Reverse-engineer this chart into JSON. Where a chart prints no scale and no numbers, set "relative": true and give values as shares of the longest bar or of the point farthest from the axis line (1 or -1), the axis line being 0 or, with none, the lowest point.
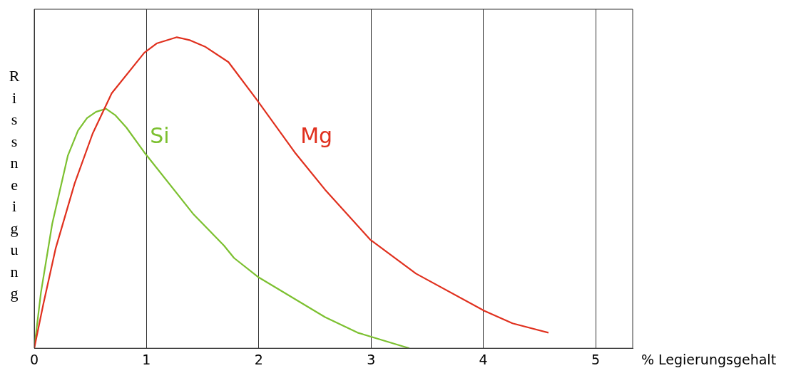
{
  "chart_data": {
    "type": "line",
    "relative": true,
    "xlabel": "% Legierungsgehalt",
    "ylabel": "Rissneigung",
    "xlim": [
      0,
      5.33
    ],
    "xticks": [
      0,
      1,
      2,
      3,
      4,
      5
    ],
    "grid": "x",
    "marker": "none",
    "line_style": "solid",
    "legend": false,
    "series": [
      {
        "name": "Mg",
        "color": "#e0301e",
        "x": [
          0,
          0.08,
          0.19,
          0.36,
          0.52,
          0.69,
          0.98,
          1.09,
          1.27,
          1.39,
          1.52,
          1.73,
          1.98,
          2.32,
          2.59,
          2.99,
          3.4,
          4.01,
          4.26,
          4.58
        ],
        "values": [
          0,
          0.14,
          0.32,
          0.53,
          0.69,
          0.82,
          0.95,
          0.98,
          1,
          0.99,
          0.97,
          0.92,
          0.8,
          0.63,
          0.51,
          0.35,
          0.24,
          0.12,
          0.08,
          0.05
        ]
      },
      {
        "name": "Si",
        "color": "#7cc030",
        "x": [
          0,
          0.06,
          0.16,
          0.3,
          0.39,
          0.47,
          0.55,
          0.64,
          0.72,
          0.82,
          0.98,
          1.42,
          1.69,
          1.78,
          1.99,
          2.22,
          2.59,
          2.88,
          3.34
        ],
        "values": [
          0,
          0.18,
          0.4,
          0.62,
          0.7,
          0.74,
          0.76,
          0.77,
          0.75,
          0.71,
          0.63,
          0.43,
          0.33,
          0.29,
          0.23,
          0.18,
          0.1,
          0.05,
          0
        ]
      }
    ]
  }
}
